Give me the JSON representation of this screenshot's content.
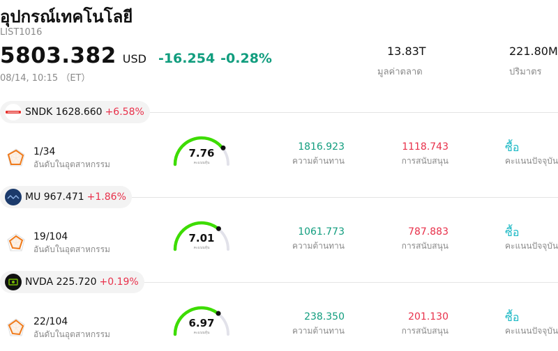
{
  "header": {
    "title": "อุปกรณ์เทคโนโลยี",
    "code": "LIST1016",
    "price": "5803.382",
    "currency": "USD",
    "change": "-16.254",
    "change_pct": "-0.28%",
    "time": "08/14, 10:15 （ET）",
    "market_cap_value": "13.83T",
    "market_cap_label": "มูลค่าตลาด",
    "volume_value": "221.80M",
    "volume_label": "ปริมาตร"
  },
  "labels": {
    "rank": "อันดับในอุตสาหกรรม",
    "gauge": "คะแนนหุ้น",
    "resistance": "ความต้านทาน",
    "support": "การสนับสนุน",
    "rating": "คะแนนปัจจุบัน"
  },
  "colors": {
    "up": "#e8304a",
    "down": "#119d7e",
    "gauge": "#3ddc00",
    "buy": "#19b8c4"
  },
  "stocks": [
    {
      "symbol": "SNDK 1628.660",
      "change_pct": "+6.58%",
      "logo_icon": "sandisk-logo-icon",
      "rank": "1/34",
      "score": "7.76",
      "score_fraction": 0.776,
      "resistance": "1816.923",
      "support": "1118.743",
      "rating": "ซื้อ"
    },
    {
      "symbol": "MU 967.471",
      "change_pct": "+1.86%",
      "logo_icon": "micron-logo-icon",
      "rank": "19/104",
      "score": "7.01",
      "score_fraction": 0.701,
      "resistance": "1061.773",
      "support": "787.883",
      "rating": "ซื้อ"
    },
    {
      "symbol": "NVDA 225.720",
      "change_pct": "+0.19%",
      "logo_icon": "nvidia-logo-icon",
      "rank": "22/104",
      "score": "6.97",
      "score_fraction": 0.697,
      "resistance": "238.350",
      "support": "201.130",
      "rating": "ซื้อ"
    }
  ]
}
